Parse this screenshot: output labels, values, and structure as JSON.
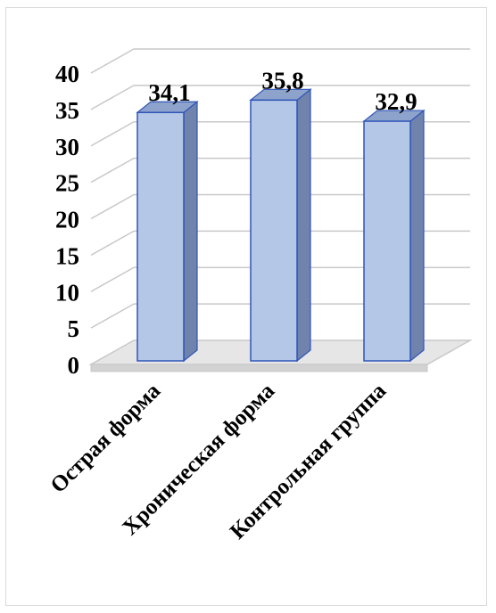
{
  "chart_data": {
    "type": "bar",
    "title": "",
    "xlabel": "",
    "ylabel": "",
    "categories": [
      "Острая форма",
      "Хроническая форма",
      "Контрольная группа"
    ],
    "series": [
      {
        "values": [
          34.1,
          35.8,
          32.9
        ]
      }
    ],
    "data_labels": [
      "34,1",
      "35,8",
      "32,9"
    ],
    "ylim": [
      0,
      40
    ],
    "yticks": [
      "0",
      "5",
      "10",
      "15",
      "20",
      "25",
      "30",
      "35",
      "40"
    ],
    "grid": true,
    "legend": "none",
    "three_d": true
  },
  "colors": {
    "bar_front": "#b4c7e7",
    "bar_side": "#6f83ad",
    "bar_top": "#8ea3cc",
    "bar_edge": "#2f55b8",
    "grid": "#c8c8c8",
    "floor": "#e6e6e6"
  }
}
